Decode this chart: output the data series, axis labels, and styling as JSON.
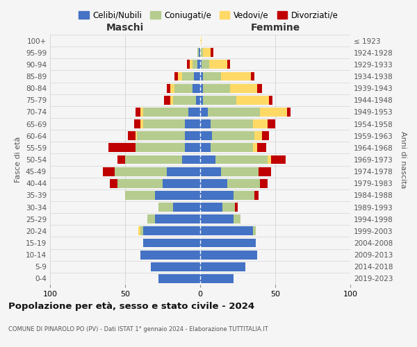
{
  "age_groups": [
    "0-4",
    "5-9",
    "10-14",
    "15-19",
    "20-24",
    "25-29",
    "30-34",
    "35-39",
    "40-44",
    "45-49",
    "50-54",
    "55-59",
    "60-64",
    "65-69",
    "70-74",
    "75-79",
    "80-84",
    "85-89",
    "90-94",
    "95-99",
    "100+"
  ],
  "birth_years": [
    "2019-2023",
    "2014-2018",
    "2009-2013",
    "2004-2008",
    "1999-2003",
    "1994-1998",
    "1989-1993",
    "1984-1988",
    "1979-1983",
    "1974-1978",
    "1969-1973",
    "1964-1968",
    "1959-1963",
    "1954-1958",
    "1949-1953",
    "1944-1948",
    "1939-1943",
    "1934-1938",
    "1929-1933",
    "1924-1928",
    "≤ 1923"
  ],
  "maschi": {
    "celibi": [
      28,
      33,
      40,
      38,
      38,
      30,
      18,
      30,
      25,
      22,
      12,
      10,
      10,
      10,
      8,
      3,
      5,
      4,
      2,
      1,
      0
    ],
    "coniugati": [
      0,
      0,
      0,
      0,
      2,
      5,
      10,
      20,
      30,
      35,
      38,
      33,
      32,
      28,
      30,
      15,
      12,
      8,
      3,
      1,
      0
    ],
    "vedovi": [
      0,
      0,
      0,
      0,
      1,
      0,
      0,
      0,
      0,
      0,
      0,
      0,
      1,
      2,
      2,
      2,
      3,
      3,
      2,
      0,
      0
    ],
    "divorziati": [
      0,
      0,
      0,
      0,
      0,
      0,
      0,
      0,
      5,
      8,
      5,
      18,
      5,
      4,
      3,
      4,
      2,
      2,
      2,
      0,
      0
    ]
  },
  "femmine": {
    "nubili": [
      22,
      30,
      38,
      37,
      35,
      22,
      15,
      22,
      18,
      14,
      10,
      7,
      8,
      7,
      5,
      2,
      2,
      2,
      1,
      0,
      0
    ],
    "coniugate": [
      0,
      0,
      0,
      0,
      2,
      5,
      8,
      14,
      22,
      25,
      35,
      28,
      28,
      28,
      35,
      22,
      18,
      12,
      5,
      2,
      0
    ],
    "vedove": [
      0,
      0,
      0,
      0,
      0,
      0,
      0,
      0,
      0,
      0,
      2,
      3,
      5,
      10,
      18,
      22,
      18,
      20,
      12,
      5,
      1
    ],
    "divorziate": [
      0,
      0,
      0,
      0,
      0,
      0,
      2,
      3,
      5,
      8,
      10,
      6,
      5,
      5,
      2,
      2,
      3,
      2,
      2,
      2,
      0
    ]
  },
  "colors": {
    "celibi_nubili": "#4472C4",
    "coniugati": "#B5CC8E",
    "vedovi": "#FFD966",
    "divorziati": "#C00000"
  },
  "xlim": [
    -100,
    100
  ],
  "xticks": [
    -100,
    -50,
    0,
    50,
    100
  ],
  "xticklabels": [
    "100",
    "50",
    "0",
    "50",
    "100"
  ],
  "title": "Popolazione per età, sesso e stato civile - 2024",
  "subtitle": "COMUNE DI PINAROLO PO (PV) - Dati ISTAT 1° gennaio 2024 - Elaborazione TUTTITALIA.IT",
  "ylabel_left": "Fasce di età",
  "ylabel_right": "Anni di nascita",
  "label_maschi": "Maschi",
  "label_femmine": "Femmine",
  "legend_labels": [
    "Celibi/Nubili",
    "Coniugati/e",
    "Vedovi/e",
    "Divorziati/e"
  ],
  "bg_color": "#f5f5f5",
  "grid_color": "#cccccc"
}
